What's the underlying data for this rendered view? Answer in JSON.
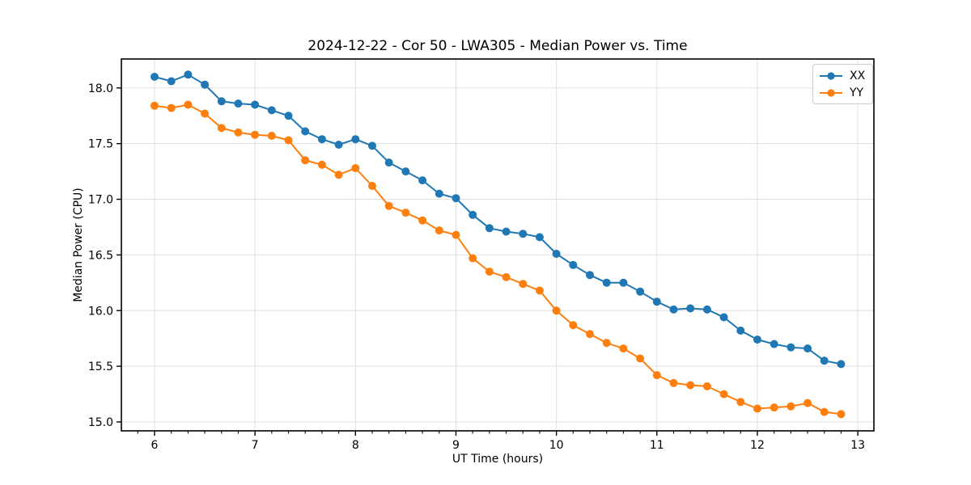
{
  "chart_data": {
    "type": "line",
    "title": "2024-12-22 - Cor 50 - LWA305 - Median Power vs. Time",
    "xlabel": "UT Time (hours)",
    "ylabel": "Median Power (CPU)",
    "xlim": [
      5.67,
      13.16
    ],
    "ylim": [
      14.92,
      18.26
    ],
    "grid": true,
    "legend_position": "upper right",
    "xticks": [
      6,
      7,
      8,
      9,
      10,
      11,
      12,
      13
    ],
    "xtick_labels": [
      "6",
      "7",
      "8",
      "9",
      "10",
      "11",
      "12",
      "13"
    ],
    "yticks": [
      15.0,
      15.5,
      16.0,
      16.5,
      17.0,
      17.5,
      18.0
    ],
    "ytick_labels": [
      "15.0",
      "15.5",
      "16.0",
      "16.5",
      "17.0",
      "17.5",
      "18.0"
    ],
    "x_minor_step": 0.16667,
    "x": [
      6,
      6.1667,
      6.3333,
      6.5,
      6.6667,
      6.8333,
      7,
      7.1667,
      7.3333,
      7.5,
      7.6667,
      7.8333,
      8,
      8.1667,
      8.3333,
      8.5,
      8.6667,
      8.8333,
      9,
      9.1667,
      9.3333,
      9.5,
      9.6667,
      9.8333,
      10,
      10.1667,
      10.3333,
      10.5,
      10.6667,
      10.8333,
      11,
      11.1667,
      11.3333,
      11.5,
      11.6667,
      11.8333,
      12,
      12.1667,
      12.3333,
      12.5,
      12.6667,
      12.8333
    ],
    "series": [
      {
        "name": "XX",
        "color": "#1f77b4",
        "values": [
          18.1,
          18.06,
          18.12,
          18.03,
          17.88,
          17.86,
          17.85,
          17.8,
          17.75,
          17.61,
          17.54,
          17.49,
          17.54,
          17.48,
          17.33,
          17.25,
          17.17,
          17.05,
          17.01,
          16.86,
          16.74,
          16.71,
          16.69,
          16.66,
          16.51,
          16.41,
          16.32,
          16.25,
          16.25,
          16.17,
          16.08,
          16.01,
          16.02,
          16.01,
          15.94,
          15.82,
          15.74,
          15.7,
          15.67,
          15.66,
          15.55,
          15.52
        ]
      },
      {
        "name": "YY",
        "color": "#ff7f0e",
        "values": [
          17.84,
          17.82,
          17.85,
          17.77,
          17.64,
          17.6,
          17.58,
          17.57,
          17.53,
          17.35,
          17.31,
          17.22,
          17.28,
          17.12,
          16.94,
          16.88,
          16.81,
          16.72,
          16.68,
          16.47,
          16.35,
          16.3,
          16.24,
          16.18,
          16.0,
          15.87,
          15.79,
          15.71,
          15.66,
          15.57,
          15.42,
          15.35,
          15.33,
          15.32,
          15.25,
          15.18,
          15.12,
          15.13,
          15.14,
          15.17,
          15.09,
          15.07
        ]
      }
    ]
  }
}
